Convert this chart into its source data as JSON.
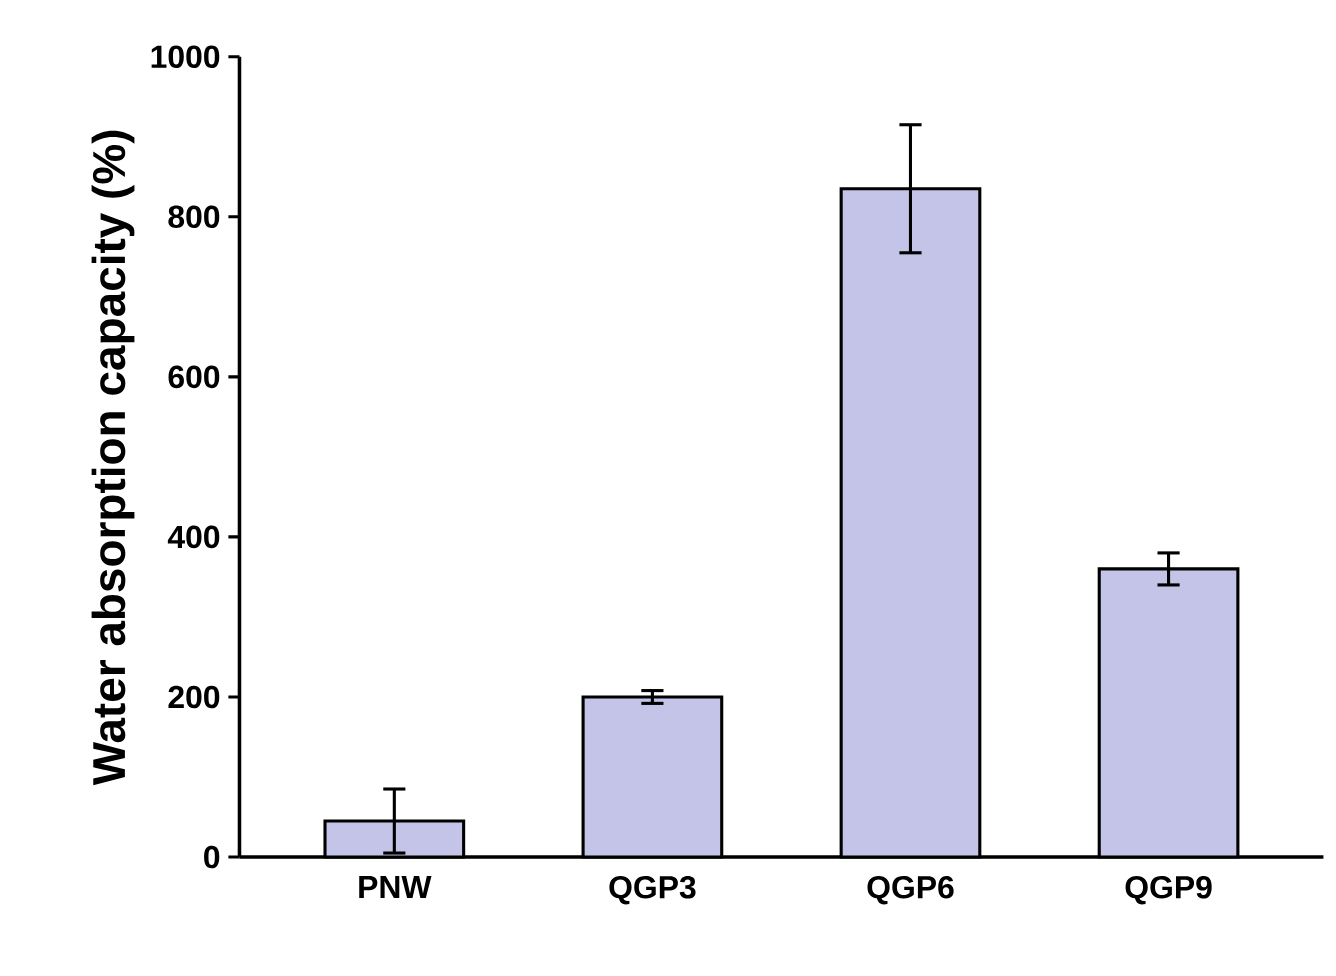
{
  "chart_data": {
    "type": "bar",
    "ylabel": "Water absorption capacity (%)",
    "categories": [
      "PNW",
      "QGP3",
      "QGP6",
      "QGP9"
    ],
    "values": [
      45,
      200,
      835,
      360
    ],
    "errors": [
      40,
      8,
      80,
      20
    ],
    "color": "#c4c4e8",
    "ylim": [
      0,
      1000
    ],
    "yticks": [
      0,
      200,
      400,
      600,
      800,
      1000
    ],
    "grid": false
  }
}
